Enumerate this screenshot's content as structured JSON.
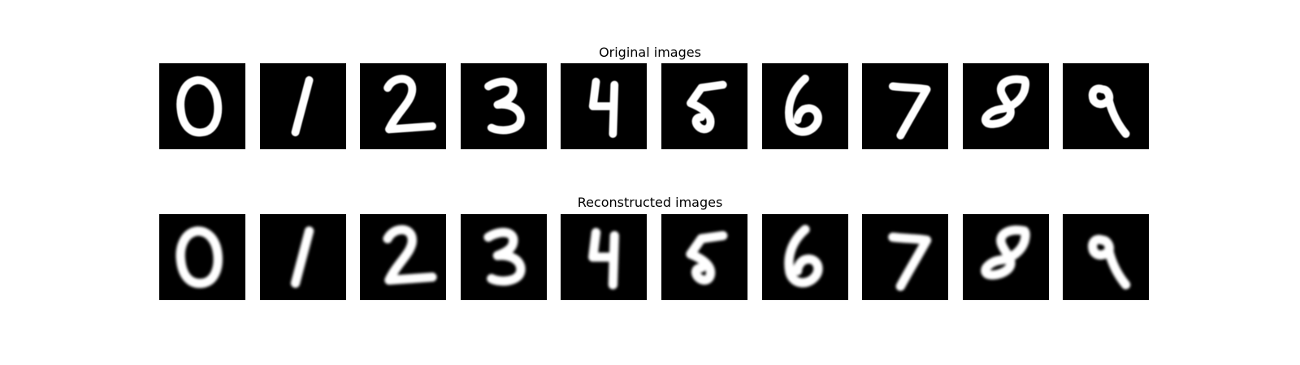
{
  "figure": {
    "original_title": "Original images",
    "reconstructed_title": "Reconstructed images"
  },
  "digits": [
    "0",
    "1",
    "2",
    "3",
    "4",
    "5",
    "6",
    "7",
    "8",
    "9"
  ],
  "colors": {
    "background": "#ffffff",
    "tile": "#000000",
    "stroke": "#ffffff"
  }
}
